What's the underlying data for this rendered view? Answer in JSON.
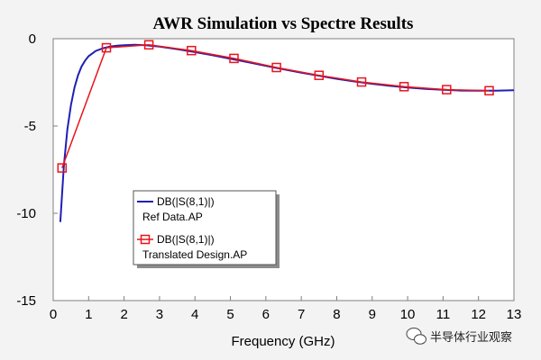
{
  "chart_data": {
    "type": "line",
    "title": "AWR Simulation vs Spectre Results",
    "xlabel": "Frequency (GHz)",
    "ylabel": "",
    "xlim": [
      0,
      13
    ],
    "ylim": [
      -15,
      0
    ],
    "xticks": [
      0,
      1,
      2,
      3,
      4,
      5,
      6,
      7,
      8,
      9,
      10,
      11,
      12,
      13
    ],
    "yticks": [
      0,
      -5,
      -10,
      -15
    ],
    "grid": false,
    "legend_position": "center-left",
    "series": [
      {
        "name": "DB(|S(8,1)|)",
        "source": "Ref Data.AP",
        "color": "#1f1fb4",
        "marker": "none",
        "x": [
          0.2,
          0.3,
          0.4,
          0.5,
          0.6,
          0.7,
          0.8,
          0.9,
          1.0,
          1.2,
          1.4,
          1.6,
          1.8,
          2.0,
          2.3,
          2.6,
          3.0,
          3.5,
          4.0,
          4.5,
          5.0,
          5.5,
          6.0,
          6.5,
          7.0,
          7.5,
          8.0,
          8.5,
          9.0,
          9.5,
          10.0,
          10.5,
          11.0,
          11.5,
          12.0,
          12.5,
          13.0
        ],
        "values": [
          -10.5,
          -7.3,
          -5.2,
          -3.8,
          -2.8,
          -2.1,
          -1.6,
          -1.25,
          -1.0,
          -0.7,
          -0.55,
          -0.45,
          -0.4,
          -0.37,
          -0.35,
          -0.37,
          -0.45,
          -0.6,
          -0.77,
          -0.95,
          -1.15,
          -1.35,
          -1.55,
          -1.75,
          -1.95,
          -2.12,
          -2.3,
          -2.45,
          -2.58,
          -2.7,
          -2.8,
          -2.87,
          -2.93,
          -2.97,
          -2.98,
          -2.98,
          -2.95
        ]
      },
      {
        "name": "DB(|S(8,1)|)",
        "source": "Translated Design.AP",
        "color": "#e8141c",
        "marker": "square",
        "x": [
          0.25,
          1.5,
          2.7,
          3.9,
          5.1,
          6.3,
          7.5,
          8.7,
          9.9,
          11.1,
          12.3
        ],
        "values": [
          -7.4,
          -0.52,
          -0.35,
          -0.68,
          -1.13,
          -1.65,
          -2.1,
          -2.48,
          -2.75,
          -2.92,
          -2.98
        ]
      }
    ]
  },
  "watermark": "半导体行业观察"
}
